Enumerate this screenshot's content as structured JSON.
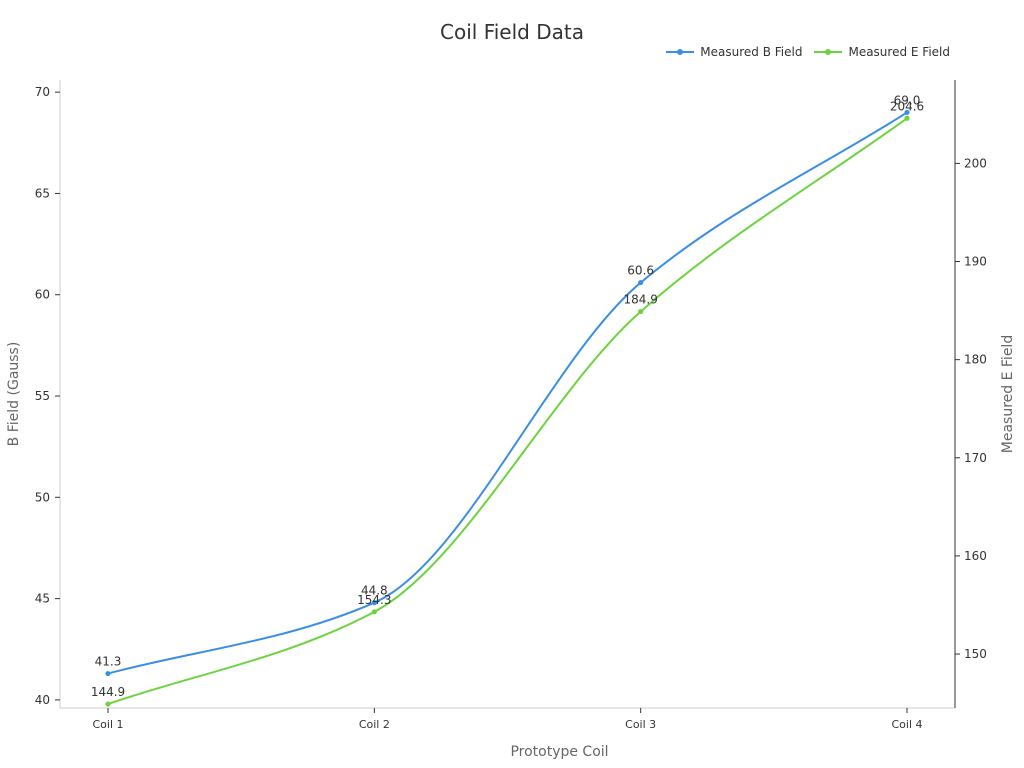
{
  "chart_data": {
    "type": "line",
    "title": "Coil Field Data",
    "xlabel": "Prototype Coil",
    "ylabel_left": "B Field (Gauss)",
    "ylabel_right": "Measured E Field",
    "categories": [
      "Coil 1",
      "Coil 2",
      "Coil 3",
      "Coil 4"
    ],
    "y_left": {
      "min": 39.6,
      "max": 70.6,
      "ticks": [
        40,
        45,
        50,
        55,
        60,
        65,
        70
      ]
    },
    "y_right": {
      "min": 144.5,
      "max": 208.5,
      "ticks": [
        150,
        160,
        170,
        180,
        190,
        200
      ]
    },
    "series": [
      {
        "name": "Measured B Field",
        "axis": "left",
        "color": "#3a8ee6",
        "values": [
          41.3,
          44.8,
          60.6,
          69.0
        ],
        "labels": [
          "41.3",
          "44.8",
          "60.6",
          "69.0"
        ]
      },
      {
        "name": "Measured E Field",
        "axis": "right",
        "color": "#6dd33f",
        "values": [
          144.9,
          154.3,
          184.9,
          204.6
        ],
        "labels": [
          "144.9",
          "154.3",
          "184.9",
          "204.6"
        ]
      }
    ],
    "grid": false,
    "legend_position": "top-right"
  }
}
